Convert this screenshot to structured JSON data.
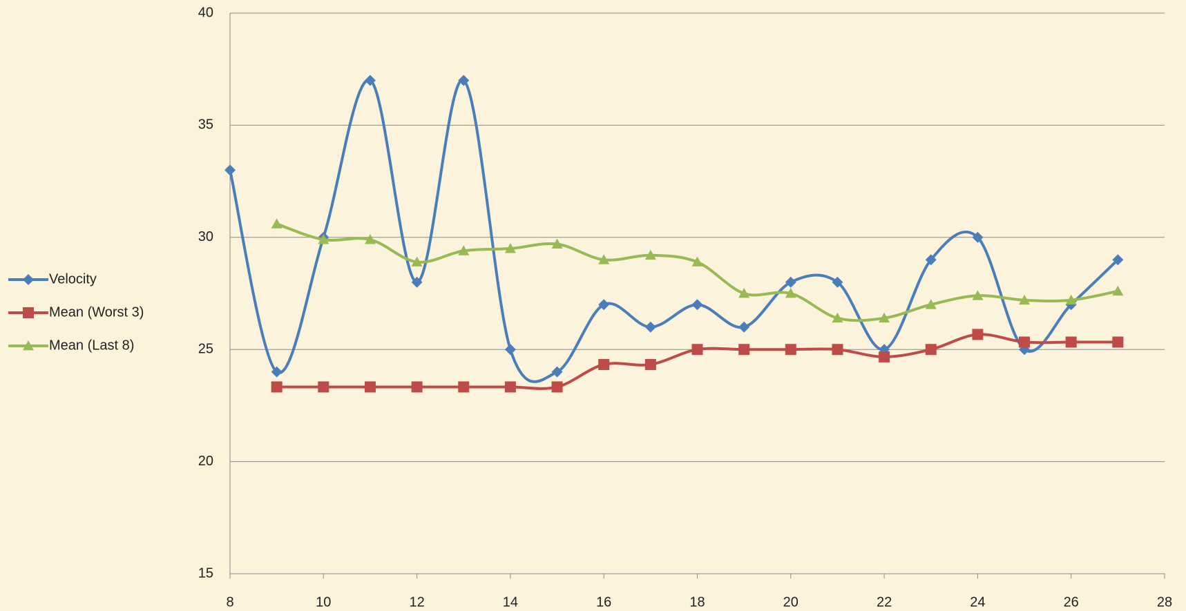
{
  "chart_data": {
    "type": "line",
    "xlim": [
      8,
      28
    ],
    "xticks": [
      8,
      10,
      12,
      14,
      16,
      18,
      20,
      22,
      24,
      26,
      28
    ],
    "ylim": [
      15,
      40
    ],
    "yticks": [
      15,
      20,
      25,
      30,
      35,
      40
    ],
    "grid": true,
    "legend": "left",
    "series": [
      {
        "name": "Velocity",
        "color": "#4a7ebb",
        "marker": "diamond",
        "x": [
          8,
          9,
          10,
          11,
          12,
          13,
          14,
          15,
          16,
          17,
          18,
          19,
          20,
          21,
          22,
          23,
          24,
          25,
          26,
          27
        ],
        "values": [
          33,
          24,
          30,
          37,
          28,
          37,
          25,
          24,
          27,
          26,
          27,
          26,
          28,
          28,
          25,
          29,
          30,
          25,
          27,
          29
        ]
      },
      {
        "name": "Mean (Worst 3)",
        "color": "#be4b48",
        "marker": "square",
        "x": [
          9,
          10,
          11,
          12,
          13,
          14,
          15,
          16,
          17,
          18,
          19,
          20,
          21,
          22,
          23,
          24,
          25,
          26,
          27
        ],
        "values": [
          23.33,
          23.33,
          23.33,
          23.33,
          23.33,
          23.33,
          23.33,
          24.33,
          24.33,
          25,
          25,
          25,
          25,
          24.67,
          25,
          25.67,
          25.33,
          25.33,
          25.33
        ]
      },
      {
        "name": "Mean (Last 8)",
        "color": "#98b954",
        "marker": "triangle",
        "x": [
          9,
          10,
          11,
          12,
          13,
          14,
          15,
          16,
          17,
          18,
          19,
          20,
          21,
          22,
          23,
          24,
          25,
          26,
          27
        ],
        "values": [
          30.6,
          29.9,
          29.9,
          28.9,
          29.4,
          29.5,
          29.7,
          29.0,
          29.2,
          28.9,
          27.5,
          27.5,
          26.4,
          26.4,
          27.0,
          27.4,
          27.2,
          27.2,
          27.6
        ]
      }
    ]
  }
}
